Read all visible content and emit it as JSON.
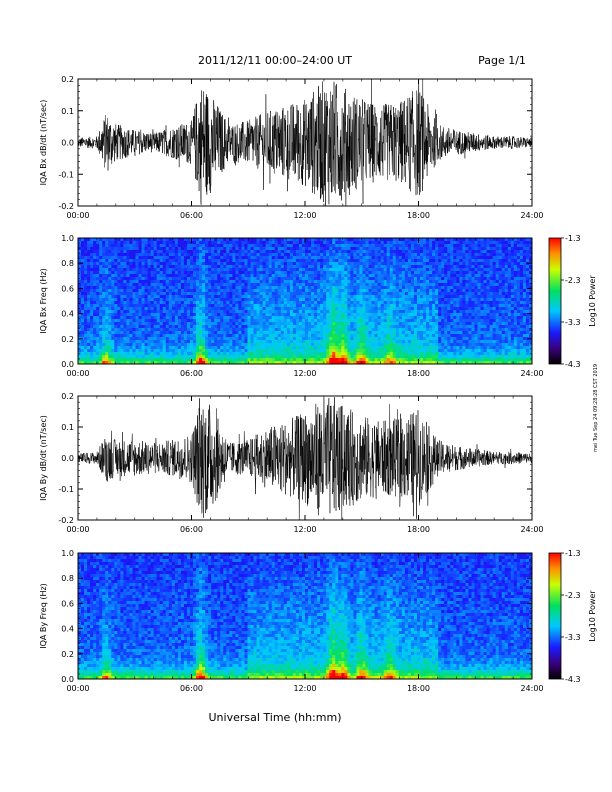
{
  "header": {
    "title": "2011/12/11   00:00–24:00 UT",
    "page": "Page 1/1"
  },
  "footer": {
    "xlabel": "Universal Time (hh:mm)",
    "side_note": "mei Tue Sep 24 09:28:28 CST 2019"
  },
  "colorbar": {
    "label": "Log10 Power",
    "ticks": [
      "-1.3",
      "-2.3",
      "-3.3",
      "-4.3"
    ]
  },
  "x_ticks": [
    "00:00",
    "06:00",
    "12:00",
    "18:00",
    "24:00"
  ],
  "chart_data": [
    {
      "type": "line",
      "ylabel": "IQA Bx dB/dt (nT/sec)",
      "xlim": [
        0,
        24
      ],
      "ylim": [
        -0.2,
        0.2
      ],
      "yticks": [
        "0.2",
        "0.1",
        "0.0",
        "-0.1",
        "-0.2"
      ],
      "xticks": [
        "00:00",
        "06:00",
        "12:00",
        "18:00",
        "24:00"
      ],
      "series": [
        {
          "x_hours": [
            0,
            1,
            1.5,
            2,
            3,
            4,
            5,
            6,
            6.5,
            7,
            8,
            9,
            10,
            11,
            12,
            13,
            13.5,
            14,
            15,
            16,
            17,
            18,
            19,
            20,
            21,
            22,
            23,
            24
          ],
          "amplitude": [
            0.015,
            0.02,
            0.1,
            0.06,
            0.04,
            0.03,
            0.05,
            0.07,
            0.2,
            0.16,
            0.06,
            0.07,
            0.1,
            0.12,
            0.14,
            0.2,
            0.2,
            0.18,
            0.14,
            0.12,
            0.13,
            0.18,
            0.06,
            0.04,
            0.03,
            0.02,
            0.02,
            0.015
          ]
        }
      ]
    },
    {
      "type": "heatmap",
      "ylabel": "IQA Bx Freq (Hz)",
      "xlim": [
        0,
        24
      ],
      "ylim": [
        0.0,
        1.0
      ],
      "yticks": [
        "1.0",
        "0.8",
        "0.6",
        "0.4",
        "0.2",
        "0.0"
      ],
      "xticks": [
        "00:00",
        "06:00",
        "12:00",
        "18:00",
        "24:00"
      ],
      "color_range": [
        -4.3,
        -1.3
      ],
      "event_hours": [
        1.5,
        6.5,
        13.5,
        14,
        15,
        16.5
      ],
      "event_strength": [
        0.55,
        0.8,
        1.0,
        0.85,
        0.6,
        0.4
      ]
    },
    {
      "type": "line",
      "ylabel": "IQA By dB/dt (nT/sec)",
      "xlim": [
        0,
        24
      ],
      "ylim": [
        -0.2,
        0.2
      ],
      "yticks": [
        "0.2",
        "0.1",
        "0.0",
        "-0.1",
        "-0.2"
      ],
      "xticks": [
        "00:00",
        "06:00",
        "12:00",
        "18:00",
        "24:00"
      ],
      "series": [
        {
          "x_hours": [
            0,
            1,
            1.5,
            2,
            3,
            4,
            5,
            6,
            6.5,
            7,
            8,
            9,
            10,
            11,
            12,
            13,
            13.5,
            14,
            15,
            16,
            17,
            18,
            19,
            20,
            21,
            22,
            23,
            24
          ],
          "amplitude": [
            0.015,
            0.02,
            0.08,
            0.06,
            0.06,
            0.05,
            0.06,
            0.08,
            0.2,
            0.18,
            0.05,
            0.06,
            0.1,
            0.12,
            0.15,
            0.2,
            0.2,
            0.17,
            0.14,
            0.12,
            0.13,
            0.16,
            0.06,
            0.04,
            0.03,
            0.02,
            0.02,
            0.015
          ]
        }
      ]
    },
    {
      "type": "heatmap",
      "ylabel": "IQA By Freq (Hz)",
      "xlim": [
        0,
        24
      ],
      "ylim": [
        0.0,
        1.0
      ],
      "yticks": [
        "1.0",
        "0.8",
        "0.6",
        "0.4",
        "0.2",
        "0.0"
      ],
      "xticks": [
        "00:00",
        "06:00",
        "12:00",
        "18:00",
        "24:00"
      ],
      "color_range": [
        -4.3,
        -1.3
      ],
      "event_hours": [
        1.5,
        6.5,
        13.5,
        14,
        15,
        16.5
      ],
      "event_strength": [
        0.5,
        0.85,
        1.0,
        0.8,
        0.6,
        0.45
      ]
    }
  ]
}
